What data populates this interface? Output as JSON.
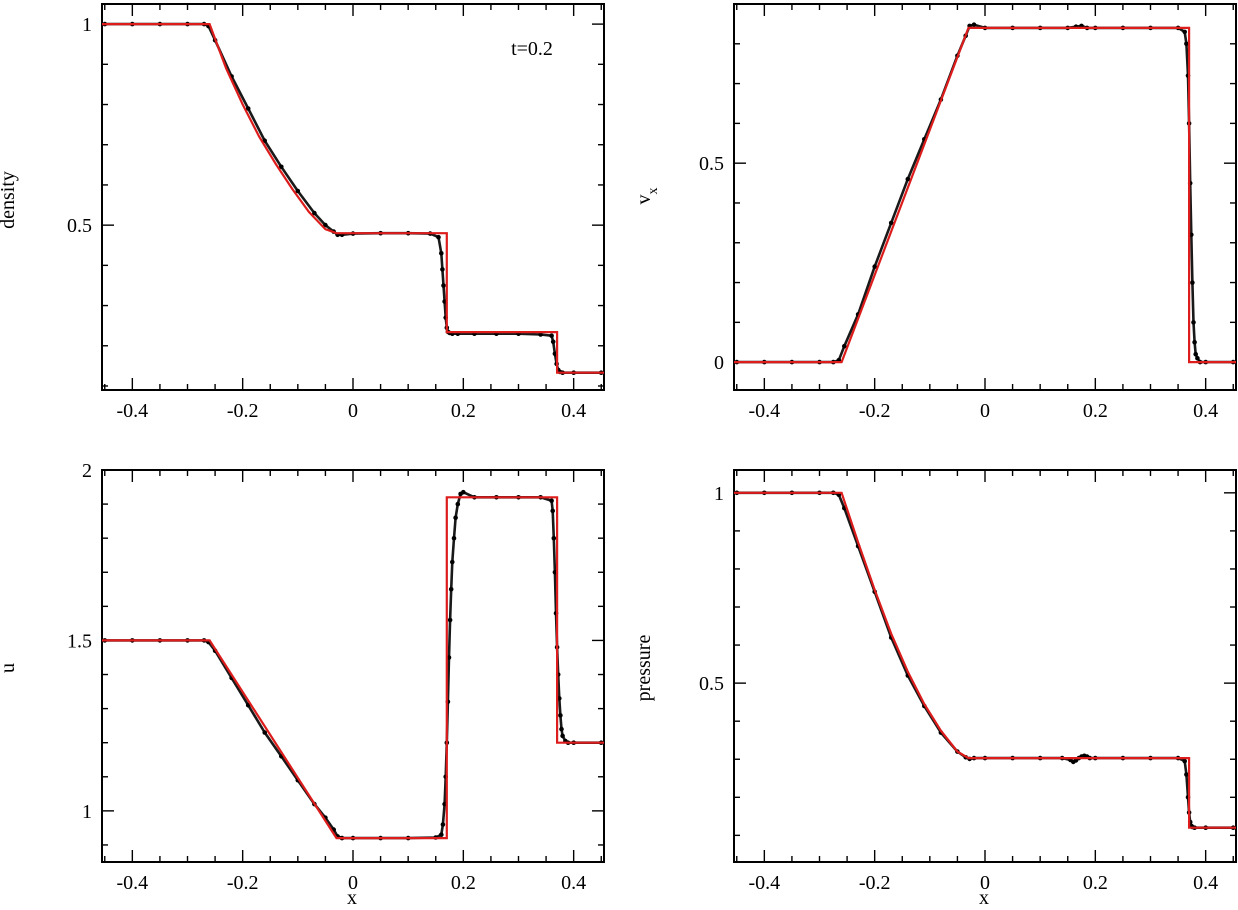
{
  "figure": {
    "annotation": "t=0.2",
    "colors": {
      "simulation": "#000000",
      "analytic": "#dd1c1c",
      "axes": "#000000",
      "background": "#ffffff"
    }
  },
  "chart_data": [
    {
      "type": "scatter",
      "id": "density",
      "ylabel": "density",
      "xlabel": "",
      "xlim": [
        -0.455,
        0.455
      ],
      "ylim": [
        0.09,
        1.05
      ],
      "xticks": [
        -0.4,
        -0.2,
        0,
        0.2,
        0.4
      ],
      "xticklabels": [
        "-0.4",
        "-0.2",
        "0",
        "0.2",
        "0.4"
      ],
      "yticks": [
        0.5,
        1
      ],
      "yticklabels": [
        "0.5",
        "1"
      ],
      "annotation": "t=0.2",
      "series": [
        {
          "role": "simulation",
          "x": [
            -0.45,
            -0.4,
            -0.35,
            -0.3,
            -0.27,
            -0.262,
            -0.25,
            -0.22,
            -0.19,
            -0.16,
            -0.13,
            -0.1,
            -0.07,
            -0.05,
            -0.035,
            -0.028,
            -0.02,
            0.0,
            0.05,
            0.1,
            0.14,
            0.155,
            0.16,
            0.162,
            0.164,
            0.166,
            0.168,
            0.17,
            0.172,
            0.175,
            0.18,
            0.19,
            0.22,
            0.26,
            0.3,
            0.34,
            0.36,
            0.363,
            0.366,
            0.369,
            0.372,
            0.375,
            0.38,
            0.4,
            0.45
          ],
          "y": [
            1.0,
            1.0,
            1.0,
            1.0,
            1.0,
            0.995,
            0.96,
            0.87,
            0.79,
            0.71,
            0.645,
            0.585,
            0.53,
            0.5,
            0.484,
            0.476,
            0.476,
            0.479,
            0.48,
            0.48,
            0.479,
            0.47,
            0.43,
            0.39,
            0.35,
            0.31,
            0.27,
            0.245,
            0.235,
            0.232,
            0.23,
            0.23,
            0.23,
            0.23,
            0.23,
            0.228,
            0.225,
            0.21,
            0.18,
            0.155,
            0.14,
            0.135,
            0.133,
            0.133,
            0.133
          ]
        },
        {
          "role": "analytic",
          "x": [
            -0.455,
            -0.26,
            -0.23,
            -0.2,
            -0.17,
            -0.14,
            -0.11,
            -0.08,
            -0.05,
            -0.03,
            0.17,
            0.17,
            0.37,
            0.37,
            0.455
          ],
          "y": [
            1.0,
            1.0,
            0.89,
            0.8,
            0.72,
            0.652,
            0.59,
            0.533,
            0.49,
            0.48,
            0.48,
            0.234,
            0.234,
            0.133,
            0.133
          ]
        }
      ]
    },
    {
      "type": "scatter",
      "id": "vx",
      "ylabel": "v",
      "ylabel_sub": "x",
      "xlabel": "",
      "xlim": [
        -0.455,
        0.455
      ],
      "ylim": [
        -0.07,
        0.9
      ],
      "xticks": [
        -0.4,
        -0.2,
        0,
        0.2,
        0.4
      ],
      "xticklabels": [
        "-0.4",
        "-0.2",
        "0",
        "0.2",
        "0.4"
      ],
      "yticks": [
        0,
        0.5
      ],
      "yticklabels": [
        "0",
        "0.5"
      ],
      "series": [
        {
          "role": "simulation",
          "x": [
            -0.45,
            -0.4,
            -0.35,
            -0.3,
            -0.275,
            -0.265,
            -0.255,
            -0.23,
            -0.2,
            -0.17,
            -0.14,
            -0.11,
            -0.08,
            -0.05,
            -0.035,
            -0.028,
            -0.02,
            0.0,
            0.05,
            0.1,
            0.15,
            0.165,
            0.175,
            0.185,
            0.2,
            0.25,
            0.3,
            0.35,
            0.362,
            0.365,
            0.368,
            0.37,
            0.372,
            0.374,
            0.376,
            0.378,
            0.38,
            0.382,
            0.385,
            0.39,
            0.4,
            0.45
          ],
          "y": [
            0.0,
            0.0,
            0.0,
            0.0,
            0.0,
            0.005,
            0.04,
            0.12,
            0.24,
            0.35,
            0.46,
            0.56,
            0.66,
            0.77,
            0.82,
            0.845,
            0.848,
            0.84,
            0.84,
            0.84,
            0.84,
            0.843,
            0.845,
            0.84,
            0.84,
            0.84,
            0.84,
            0.84,
            0.83,
            0.8,
            0.72,
            0.6,
            0.45,
            0.32,
            0.2,
            0.1,
            0.05,
            0.02,
            0.01,
            0.0,
            0.0,
            0.0
          ]
        },
        {
          "role": "analytic",
          "x": [
            -0.455,
            -0.26,
            -0.03,
            0.37,
            0.37,
            0.455
          ],
          "y": [
            0.0,
            0.0,
            0.84,
            0.84,
            0.0,
            0.0
          ]
        }
      ]
    },
    {
      "type": "scatter",
      "id": "u",
      "ylabel": "u",
      "xlabel": "x",
      "xlim": [
        -0.455,
        0.455
      ],
      "ylim": [
        0.85,
        2.0
      ],
      "xticks": [
        -0.4,
        -0.2,
        0,
        0.2,
        0.4
      ],
      "xticklabels": [
        "-0.4",
        "-0.2",
        "0",
        "0.2",
        "0.4"
      ],
      "yticks": [
        1,
        1.5,
        2
      ],
      "yticklabels": [
        "1",
        "1.5",
        "2"
      ],
      "series": [
        {
          "role": "simulation",
          "x": [
            -0.45,
            -0.4,
            -0.35,
            -0.3,
            -0.27,
            -0.262,
            -0.25,
            -0.22,
            -0.19,
            -0.16,
            -0.13,
            -0.1,
            -0.07,
            -0.05,
            -0.035,
            -0.028,
            -0.02,
            0.0,
            0.05,
            0.1,
            0.15,
            0.16,
            0.163,
            0.166,
            0.168,
            0.17,
            0.172,
            0.174,
            0.176,
            0.178,
            0.18,
            0.183,
            0.186,
            0.19,
            0.195,
            0.2,
            0.22,
            0.26,
            0.3,
            0.34,
            0.36,
            0.362,
            0.364,
            0.366,
            0.368,
            0.37,
            0.372,
            0.374,
            0.376,
            0.378,
            0.38,
            0.385,
            0.39,
            0.4,
            0.45
          ],
          "y": [
            1.5,
            1.5,
            1.5,
            1.5,
            1.5,
            1.495,
            1.47,
            1.39,
            1.31,
            1.23,
            1.16,
            1.09,
            1.02,
            0.98,
            0.945,
            0.925,
            0.92,
            0.92,
            0.92,
            0.92,
            0.922,
            0.93,
            0.96,
            1.02,
            1.1,
            1.2,
            1.32,
            1.45,
            1.56,
            1.65,
            1.73,
            1.8,
            1.86,
            1.9,
            1.93,
            1.935,
            1.92,
            1.92,
            1.92,
            1.92,
            1.91,
            1.88,
            1.8,
            1.7,
            1.58,
            1.48,
            1.4,
            1.33,
            1.28,
            1.24,
            1.22,
            1.205,
            1.2,
            1.2,
            1.2
          ]
        },
        {
          "role": "analytic",
          "x": [
            -0.455,
            -0.26,
            -0.03,
            0.17,
            0.17,
            0.37,
            0.37,
            0.455
          ],
          "y": [
            1.5,
            1.5,
            0.92,
            0.92,
            1.92,
            1.92,
            1.2,
            1.2
          ]
        }
      ]
    },
    {
      "type": "scatter",
      "id": "pressure",
      "ylabel": "pressure",
      "xlabel": "x",
      "xlim": [
        -0.455,
        0.455
      ],
      "ylim": [
        0.03,
        1.06
      ],
      "xticks": [
        -0.4,
        -0.2,
        0,
        0.2,
        0.4
      ],
      "xticklabels": [
        "-0.4",
        "-0.2",
        "0",
        "0.2",
        "0.4"
      ],
      "yticks": [
        0.5,
        1
      ],
      "yticklabels": [
        "0.5",
        "1"
      ],
      "series": [
        {
          "role": "simulation",
          "x": [
            -0.45,
            -0.4,
            -0.35,
            -0.3,
            -0.275,
            -0.265,
            -0.255,
            -0.23,
            -0.2,
            -0.17,
            -0.14,
            -0.11,
            -0.08,
            -0.05,
            -0.035,
            -0.028,
            -0.02,
            0.0,
            0.05,
            0.1,
            0.14,
            0.155,
            0.16,
            0.165,
            0.17,
            0.175,
            0.18,
            0.185,
            0.19,
            0.2,
            0.25,
            0.3,
            0.35,
            0.362,
            0.365,
            0.368,
            0.37,
            0.372,
            0.374,
            0.376,
            0.38,
            0.4,
            0.45
          ],
          "y": [
            1.0,
            1.0,
            1.0,
            1.0,
            1.0,
            0.995,
            0.96,
            0.86,
            0.74,
            0.62,
            0.52,
            0.44,
            0.37,
            0.32,
            0.305,
            0.301,
            0.303,
            0.303,
            0.303,
            0.303,
            0.303,
            0.298,
            0.293,
            0.297,
            0.303,
            0.307,
            0.309,
            0.307,
            0.303,
            0.303,
            0.303,
            0.303,
            0.303,
            0.295,
            0.26,
            0.2,
            0.16,
            0.135,
            0.125,
            0.122,
            0.12,
            0.12,
            0.12
          ]
        },
        {
          "role": "analytic",
          "x": [
            -0.455,
            -0.26,
            -0.23,
            -0.2,
            -0.17,
            -0.14,
            -0.11,
            -0.08,
            -0.05,
            -0.03,
            0.37,
            0.37,
            0.455
          ],
          "y": [
            1.0,
            1.0,
            0.87,
            0.745,
            0.63,
            0.53,
            0.445,
            0.375,
            0.32,
            0.303,
            0.303,
            0.12,
            0.12
          ]
        }
      ]
    }
  ]
}
